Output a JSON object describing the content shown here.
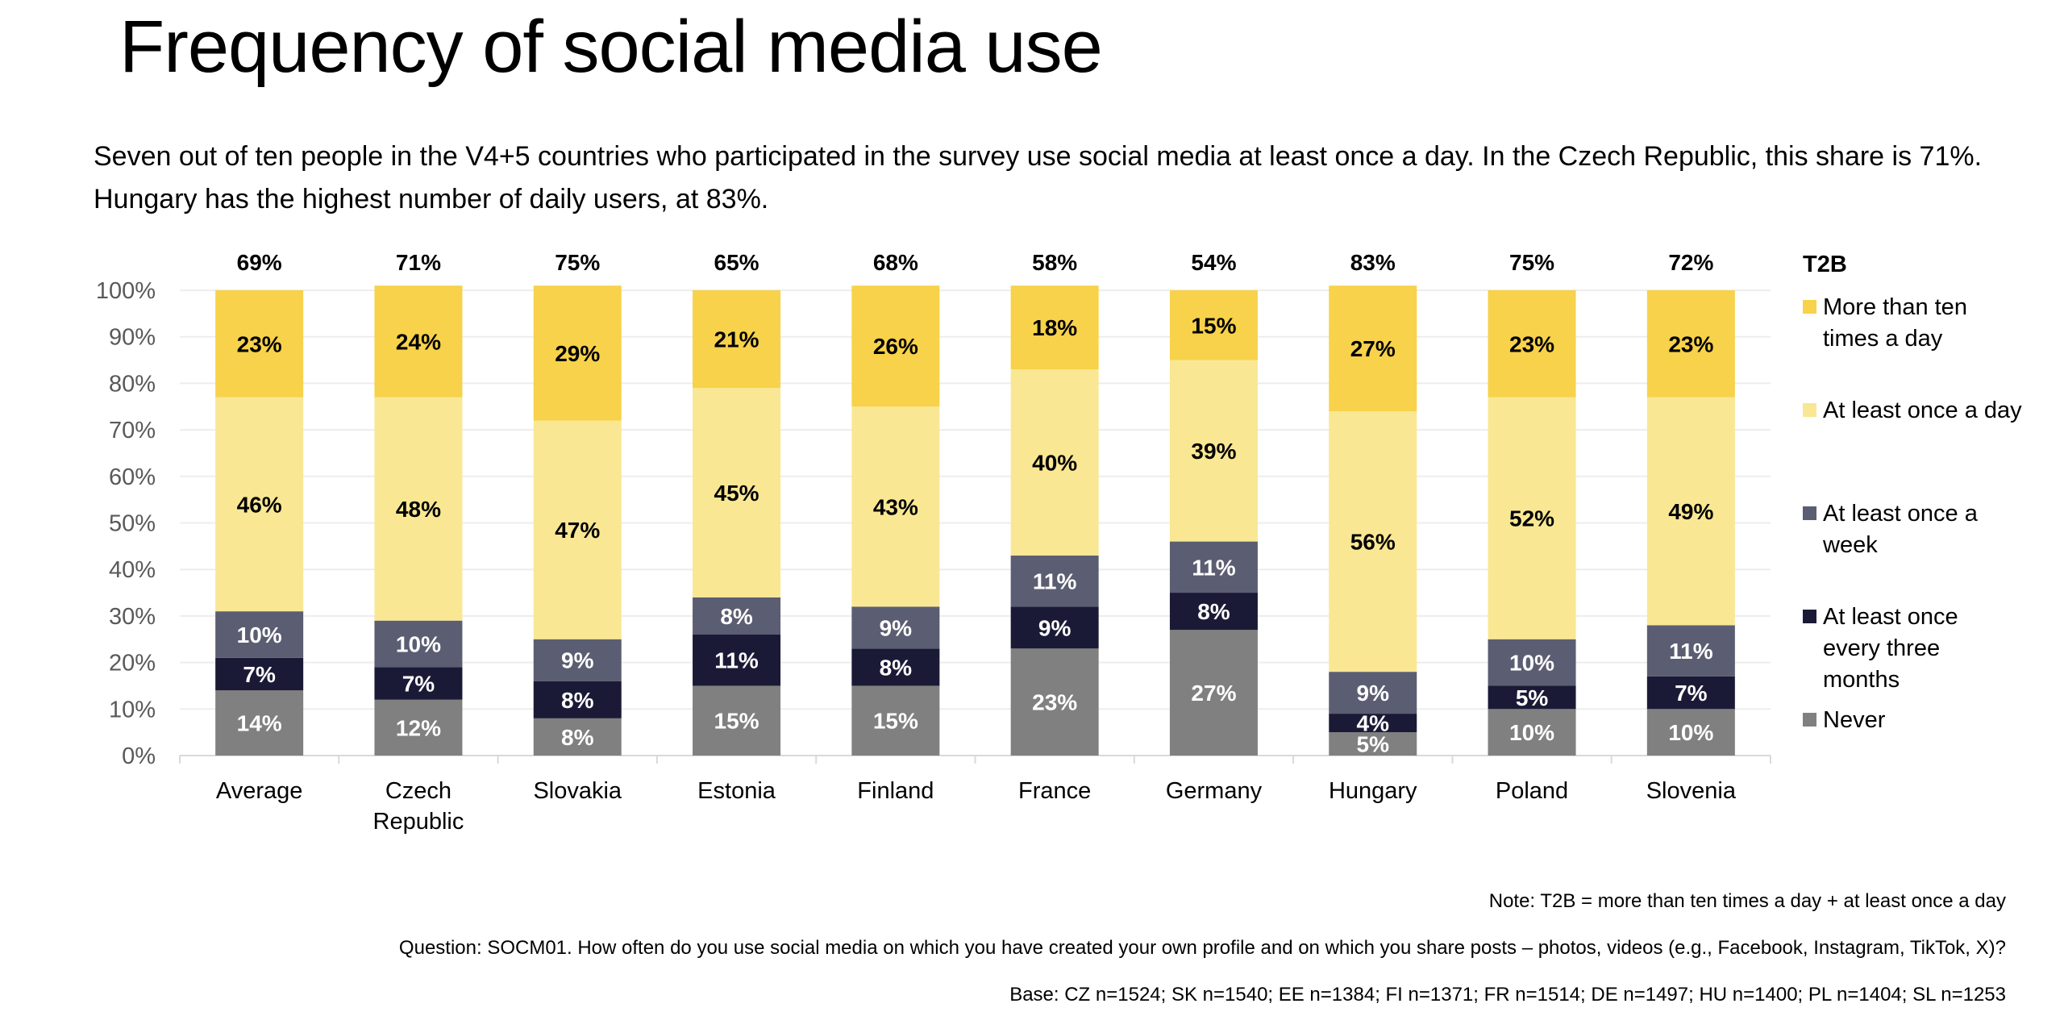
{
  "page": {
    "title": "Frequency of social media use",
    "subtitle": "Seven out of ten people in the V4+5 countries who participated in the survey use social media at least once a day. In the Czech Republic, this share is 71%. Hungary has the highest number of daily users, at 83%.",
    "notes": {
      "note": "Note: T2B = more than ten times a day + at least once a day",
      "question": "Question: SOCM01. How often do you use social media on which you have created your own profile and on which you share posts – photos, videos (e.g., Facebook, Instagram, TikTok, X)?",
      "base": "Base: CZ n=1524; SK n=1540; EE n=1384; FI n=1371; FR n=1514; DE n=1497; HU n=1400; PL n=1404; SL n=1253"
    }
  },
  "legend": {
    "title": "T2B",
    "items": [
      {
        "label": "More than ten times a day",
        "color": "#F7D24A"
      },
      {
        "label": "At least once a day",
        "color": "#F9E793"
      },
      {
        "label": "At least once a week",
        "color": "#5B5E72"
      },
      {
        "label": "At least once every three months",
        "color": "#1B1A36"
      },
      {
        "label": "Never",
        "color": "#808080"
      }
    ]
  },
  "chart_data": {
    "type": "bar",
    "stacked": true,
    "title": "Frequency of social media use",
    "xlabel": "",
    "ylabel": "",
    "ylim": [
      0,
      100
    ],
    "yticks": [
      "0%",
      "10%",
      "20%",
      "30%",
      "40%",
      "50%",
      "60%",
      "70%",
      "80%",
      "90%",
      "100%"
    ],
    "grid": true,
    "legend_position": "right",
    "categories": [
      "Average",
      "Czech Republic",
      "Slovakia",
      "Estonia",
      "Finland",
      "France",
      "Germany",
      "Hungary",
      "Poland",
      "Slovenia"
    ],
    "top_labels_title": "T2B",
    "top_labels": [
      "69%",
      "71%",
      "75%",
      "65%",
      "68%",
      "58%",
      "54%",
      "83%",
      "75%",
      "72%"
    ],
    "series": [
      {
        "name": "Never",
        "color": "#808080",
        "label_color": "#FFFFFF",
        "values": [
          14,
          12,
          8,
          15,
          15,
          23,
          27,
          5,
          10,
          10
        ]
      },
      {
        "name": "At least once every three months",
        "color": "#1B1A36",
        "label_color": "#FFFFFF",
        "values": [
          7,
          7,
          8,
          11,
          8,
          9,
          8,
          4,
          5,
          7
        ]
      },
      {
        "name": "At least once a week",
        "color": "#5B5E72",
        "label_color": "#FFFFFF",
        "values": [
          10,
          10,
          9,
          8,
          9,
          11,
          11,
          9,
          10,
          11
        ]
      },
      {
        "name": "At least once a day",
        "color": "#F9E793",
        "label_color": "#000000",
        "values": [
          46,
          48,
          47,
          45,
          43,
          40,
          39,
          56,
          52,
          49
        ]
      },
      {
        "name": "More than ten times a day",
        "color": "#F7D24A",
        "label_color": "#000000",
        "values": [
          23,
          24,
          29,
          21,
          26,
          18,
          15,
          27,
          23,
          23
        ]
      }
    ]
  }
}
